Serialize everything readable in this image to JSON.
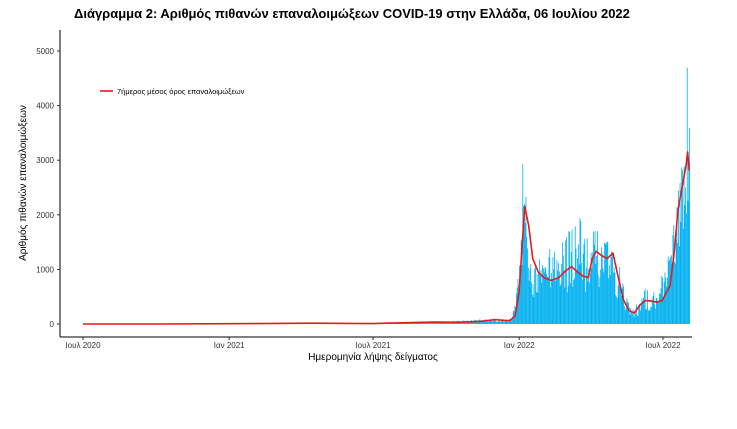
{
  "chart_data": {
    "type": "bar",
    "title": "Διάγραμμα 2: Αριθμός πιθανών επαναλοιμώξεων COVID-19 στην Ελλάδα, 06 Ιουλίου 2022",
    "xlabel": "Ημερομηνία λήψης δείγματος",
    "ylabel": "Αριθμός πιθανών επαναλοιμώξεων",
    "x_range": [
      "2020-07-01",
      "2022-07-06"
    ],
    "ylim": [
      0,
      5200
    ],
    "x_ticks": [
      {
        "date": "2020-07-01",
        "label": "Ιουλ 2020"
      },
      {
        "date": "2021-01-01",
        "label": "Ιαν 2021"
      },
      {
        "date": "2021-07-01",
        "label": "Ιουλ 2021"
      },
      {
        "date": "2022-01-01",
        "label": "Ιαν 2022"
      },
      {
        "date": "2022-07-01",
        "label": "Ιουλ 2022"
      }
    ],
    "y_ticks": [
      0,
      1000,
      2000,
      3000,
      4000,
      5000
    ],
    "grid": false,
    "legend_position": "top-left",
    "bar_color": "#00b0f0",
    "line_color": "#e41a1c",
    "series": [
      {
        "name": "7ήμερος μέσος όρος επαναλοιμώξεων",
        "type": "line",
        "points": [
          [
            "2020-07-01",
            0
          ],
          [
            "2020-10-01",
            0
          ],
          [
            "2021-01-01",
            5
          ],
          [
            "2021-03-01",
            10
          ],
          [
            "2021-04-15",
            15
          ],
          [
            "2021-06-01",
            10
          ],
          [
            "2021-07-01",
            8
          ],
          [
            "2021-08-01",
            20
          ],
          [
            "2021-09-15",
            35
          ],
          [
            "2021-10-15",
            30
          ],
          [
            "2021-11-15",
            50
          ],
          [
            "2021-12-01",
            80
          ],
          [
            "2021-12-20",
            60
          ],
          [
            "2021-12-27",
            150
          ],
          [
            "2022-01-01",
            600
          ],
          [
            "2022-01-05",
            1500
          ],
          [
            "2022-01-08",
            2150
          ],
          [
            "2022-01-13",
            1800
          ],
          [
            "2022-01-18",
            1200
          ],
          [
            "2022-01-25",
            950
          ],
          [
            "2022-02-01",
            850
          ],
          [
            "2022-02-10",
            800
          ],
          [
            "2022-02-20",
            850
          ],
          [
            "2022-03-01",
            980
          ],
          [
            "2022-03-08",
            1050
          ],
          [
            "2022-03-15",
            960
          ],
          [
            "2022-03-22",
            880
          ],
          [
            "2022-03-29",
            850
          ],
          [
            "2022-04-03",
            1200
          ],
          [
            "2022-04-08",
            1330
          ],
          [
            "2022-04-15",
            1250
          ],
          [
            "2022-04-22",
            1200
          ],
          [
            "2022-04-29",
            1300
          ],
          [
            "2022-05-05",
            900
          ],
          [
            "2022-05-12",
            450
          ],
          [
            "2022-05-19",
            250
          ],
          [
            "2022-05-26",
            200
          ],
          [
            "2022-06-02",
            350
          ],
          [
            "2022-06-09",
            430
          ],
          [
            "2022-06-16",
            420
          ],
          [
            "2022-06-23",
            400
          ],
          [
            "2022-06-30",
            430
          ],
          [
            "2022-07-06",
            600
          ],
          [
            "2022-07-10",
            700
          ],
          [
            "2022-07-15",
            1300
          ],
          [
            "2022-07-20",
            2100
          ],
          [
            "2022-07-25",
            2500
          ],
          [
            "2022-07-30",
            2900
          ],
          [
            "2022-08-01",
            3150
          ],
          [
            "2022-08-03",
            2800
          ]
        ]
      },
      {
        "name": "daily",
        "type": "bar",
        "daily_envelope": [
          [
            "2020-07-01",
            0
          ],
          [
            "2020-12-31",
            8
          ],
          [
            "2021-04-01",
            25
          ],
          [
            "2021-07-01",
            15
          ],
          [
            "2021-10-01",
            50
          ],
          [
            "2021-11-20",
            100
          ],
          [
            "2021-12-20",
            100
          ],
          [
            "2021-12-27",
            400
          ],
          [
            "2022-01-01",
            1400
          ],
          [
            "2022-01-04",
            2500
          ],
          [
            "2022-01-06",
            3450
          ],
          [
            "2022-01-10",
            2000
          ],
          [
            "2022-01-15",
            1300
          ],
          [
            "2022-01-25",
            1200
          ],
          [
            "2022-02-10",
            1400
          ],
          [
            "2022-03-01",
            1600
          ],
          [
            "2022-03-15",
            2100
          ],
          [
            "2022-03-29",
            1500
          ],
          [
            "2022-04-08",
            1900
          ],
          [
            "2022-04-22",
            1600
          ],
          [
            "2022-05-05",
            1200
          ],
          [
            "2022-05-19",
            400
          ],
          [
            "2022-05-26",
            300
          ],
          [
            "2022-06-09",
            700
          ],
          [
            "2022-06-23",
            650
          ],
          [
            "2022-07-06",
            1200
          ],
          [
            "2022-07-15",
            1900
          ],
          [
            "2022-07-25",
            3500
          ],
          [
            "2022-08-01",
            5200
          ],
          [
            "2022-08-03",
            3900
          ]
        ]
      }
    ]
  }
}
